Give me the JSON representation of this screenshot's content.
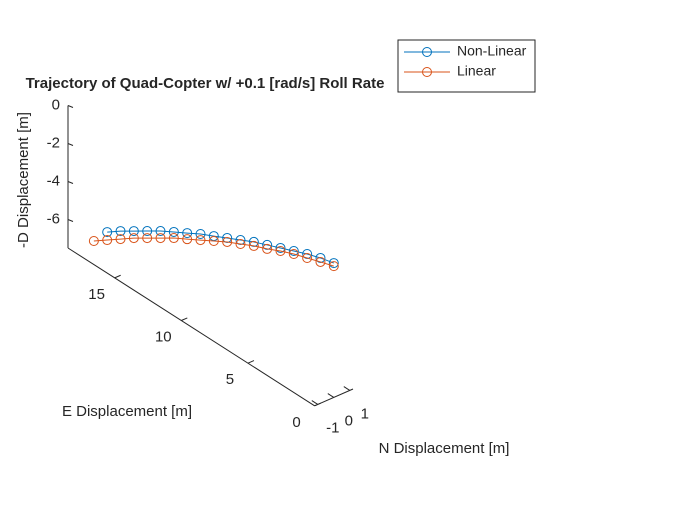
{
  "chart_data": {
    "type": "line3d",
    "title": "Trajectory of Quad-Copter w/ +0.1 [rad/s] Roll Rate",
    "xlabel": "N Displacement [m]",
    "ylabel": "E Displacement [m]",
    "zlabel": "-D Displacement [m]",
    "xlim": [
      -1.2,
      1.2
    ],
    "xticks": [
      -1,
      0,
      1
    ],
    "ylim": [
      0,
      18.5
    ],
    "yticks": [
      0,
      5,
      10,
      15
    ],
    "zlim": [
      -7.5,
      0
    ],
    "zticks": [
      -6,
      -4,
      -2,
      0
    ],
    "legend": "northeast",
    "marker": "circle",
    "series": [
      {
        "name": "Non-Linear",
        "color": "#0072bd",
        "x": [
          0,
          0,
          0,
          0,
          0,
          0,
          0,
          0,
          0,
          0,
          0,
          0,
          0,
          0,
          0,
          0,
          0,
          0
        ],
        "y": [
          0,
          1,
          2,
          3,
          4,
          5,
          6,
          7,
          8,
          9,
          10,
          11,
          12,
          13,
          14,
          15,
          16,
          17
        ],
        "z": [
          -0.43,
          -0.61,
          -0.85,
          -1.14,
          -1.43,
          -1.72,
          -2.01,
          -2.36,
          -2.7,
          -3.05,
          -3.39,
          -3.79,
          -4.18,
          -4.58,
          -5.03,
          -5.48,
          -5.93,
          -6.43
        ]
      },
      {
        "name": "Linear",
        "color": "#d95319",
        "x": [
          0,
          0,
          0,
          0,
          0,
          0,
          0,
          0,
          0,
          0,
          0,
          0,
          0,
          0,
          0,
          0,
          0,
          0,
          0
        ],
        "y": [
          0,
          1,
          2,
          3,
          4,
          5,
          6,
          7,
          8,
          9,
          10,
          11,
          12,
          13,
          14,
          15,
          16,
          17,
          18
        ],
        "z": [
          -0.59,
          -0.82,
          -1.06,
          -1.3,
          -1.59,
          -1.93,
          -2.22,
          -2.57,
          -2.91,
          -3.31,
          -3.71,
          -4.11,
          -4.5,
          -4.95,
          -5.4,
          -5.85,
          -6.35,
          -6.85,
          -7.35
        ]
      }
    ]
  }
}
